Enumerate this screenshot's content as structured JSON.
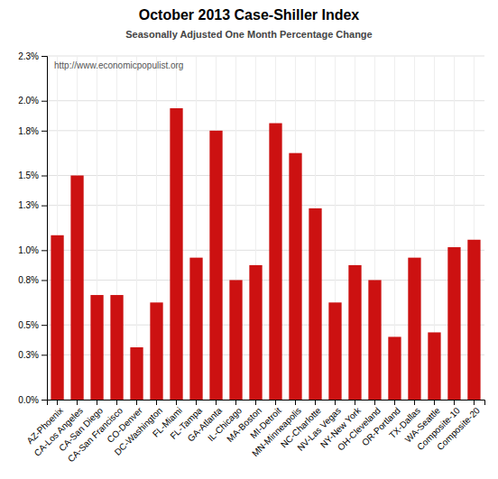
{
  "chart_data": {
    "type": "bar",
    "title": "October 2013 Case-Shiller Index",
    "subtitle": "Seasonally Adjusted One Month Percentage Change",
    "annotations": [
      "http://www.economicpopulist.org"
    ],
    "categories": [
      "AZ-Phoenix",
      "CA-Los Angeles",
      "CA-San Diego",
      "CA-San Francisco",
      "CO-Denver",
      "DC-Washington",
      "FL-Miami",
      "FL-Tampa",
      "GA-Atlanta",
      "IL-Chicago",
      "MA-Boston",
      "MI-Detroit",
      "MN-Minneapolis",
      "NC-Charlotte",
      "NV-Las Vegas",
      "NY-New York",
      "OH-Cleveland",
      "OR-Portland",
      "TX-Dallas",
      "WA-Seattle",
      "Composite-10",
      "Composite-20"
    ],
    "values": [
      0.011,
      0.015,
      0.007,
      0.007,
      0.0035,
      0.0065,
      0.0195,
      0.0095,
      0.018,
      0.008,
      0.009,
      0.0185,
      0.0165,
      0.0128,
      0.0065,
      0.009,
      0.008,
      0.0042,
      0.0095,
      0.0045,
      0.0102,
      0.0107
    ],
    "color": "#cc1111",
    "ylim": [
      0.0,
      0.023
    ],
    "yticks": [
      {
        "value": 0.0,
        "label": "0.0%"
      },
      {
        "value": 0.003,
        "label": "0.3%"
      },
      {
        "value": 0.005,
        "label": "0.5%"
      },
      {
        "value": 0.008,
        "label": "0.8%"
      },
      {
        "value": 0.01,
        "label": "1.0%"
      },
      {
        "value": 0.013,
        "label": "1.3%"
      },
      {
        "value": 0.015,
        "label": "1.5%"
      },
      {
        "value": 0.018,
        "label": "1.8%"
      },
      {
        "value": 0.02,
        "label": "2.0%"
      },
      {
        "value": 0.023,
        "label": "2.3%"
      }
    ],
    "grid": true
  }
}
